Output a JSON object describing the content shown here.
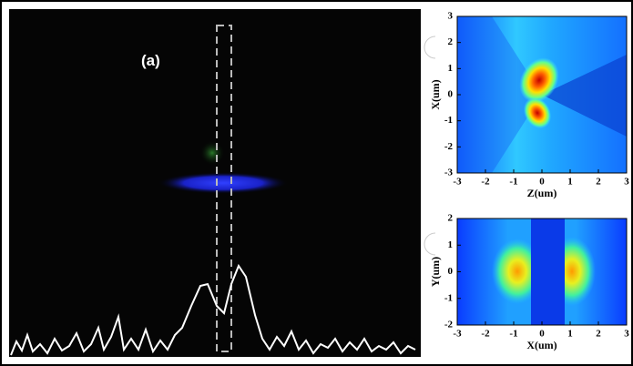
{
  "panel_label": "(a)",
  "plots": [
    {
      "x_label": "Z(um)",
      "y_label": "X(um)",
      "x_ticks": [
        -3,
        -2,
        -1,
        0,
        1,
        2,
        3
      ],
      "y_ticks": [
        3,
        2,
        1,
        0,
        -1,
        -2,
        -3
      ]
    },
    {
      "x_label": "X(um)",
      "y_label": "Y(um)",
      "x_ticks": [
        -3,
        -2,
        -1,
        0,
        1,
        2,
        3
      ],
      "y_ticks": [
        2,
        1,
        0,
        -1,
        -2
      ]
    }
  ]
}
